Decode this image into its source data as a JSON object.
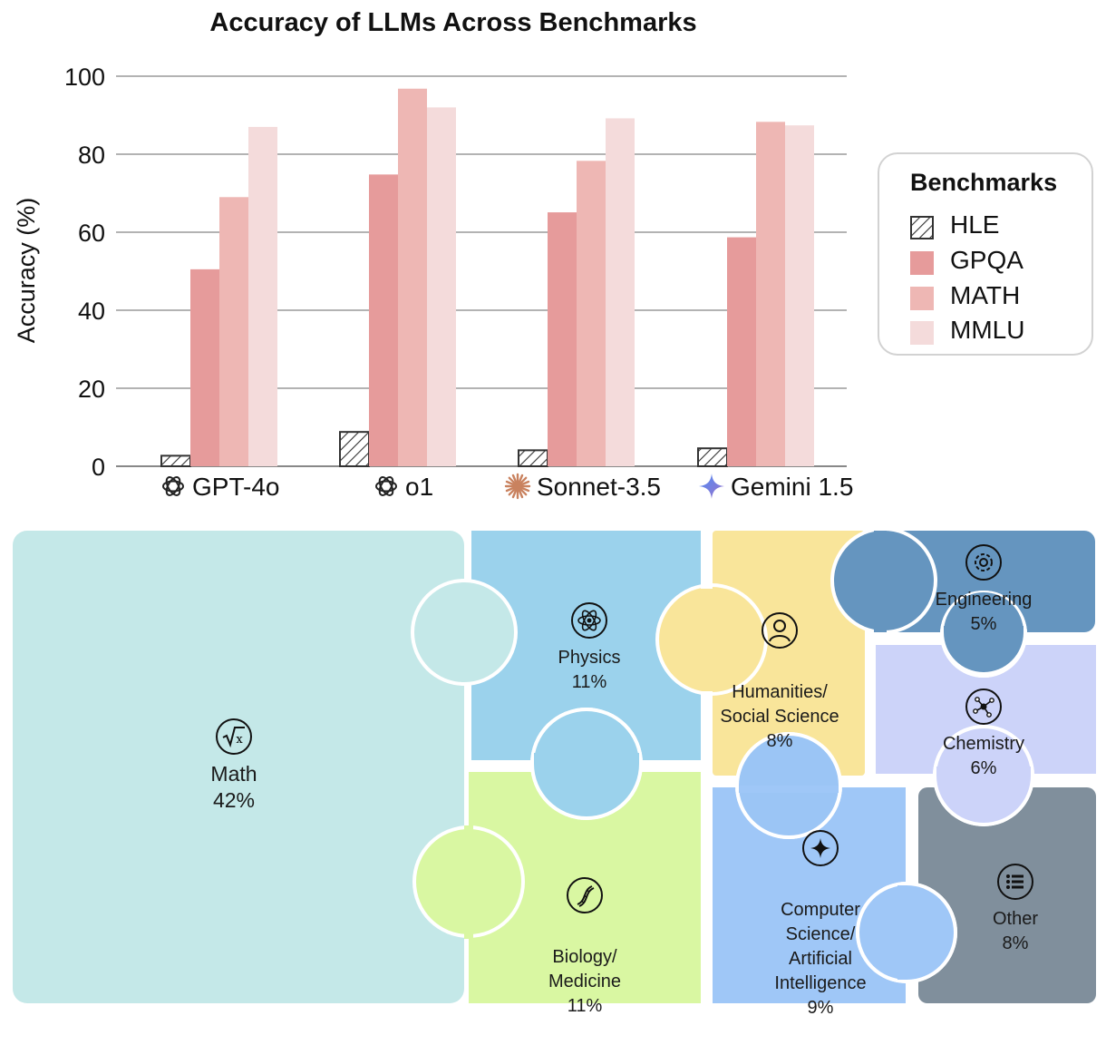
{
  "chart_data": {
    "type": "bar",
    "title": "Accuracy of LLMs Across Benchmarks",
    "xlabel": "",
    "ylabel": "Accuracy (%)",
    "ylim": [
      0,
      100
    ],
    "yticks": [
      0,
      20,
      40,
      60,
      80,
      100
    ],
    "grid": true,
    "legend_title": "Benchmarks",
    "legend_position": "right",
    "categories": [
      "GPT-4o",
      "o1",
      "Sonnet-3.5",
      "Gemini 1.5"
    ],
    "series": [
      {
        "name": "HLE",
        "values": [
          2.7,
          8.8,
          4.1,
          4.6
        ],
        "color": "#ffffff",
        "pattern": "hatch"
      },
      {
        "name": "GPQA",
        "values": [
          50.5,
          74.8,
          65.1,
          58.7
        ],
        "color": "#e69b9b"
      },
      {
        "name": "MATH",
        "values": [
          69.0,
          96.8,
          78.3,
          88.3
        ],
        "color": "#eeb7b4"
      },
      {
        "name": "MMLU",
        "values": [
          87.0,
          92.0,
          89.2,
          87.4
        ],
        "color": "#f4dbdb"
      }
    ]
  },
  "category_icons": [
    "openai-logo-icon",
    "openai-logo-icon",
    "anthropic-logo-icon",
    "gemini-logo-icon"
  ],
  "subjects": [
    {
      "name": "Math",
      "pct": "42%",
      "icon": "square-root-icon",
      "color": "#c4e8e8"
    },
    {
      "name": "Physics",
      "pct": "11%",
      "icon": "atom-icon",
      "color": "#9bd2ec"
    },
    {
      "name": "Humanities/\nSocial Science",
      "pct": "8%",
      "icon": "person-icon",
      "color": "#f9e59a"
    },
    {
      "name": "Engineering",
      "pct": "5%",
      "icon": "gear-icon",
      "color": "#6595bf"
    },
    {
      "name": "Chemistry",
      "pct": "6%",
      "icon": "molecule-icon",
      "color": "#ccd3f9"
    },
    {
      "name": "Biology/\nMedicine",
      "pct": "11%",
      "icon": "dna-icon",
      "color": "#d9f7a2"
    },
    {
      "name": "Computer\nScience/\nArtificial\nIntelligence",
      "pct": "9%",
      "icon": "sparkle-icon",
      "color": "#9fc7f7"
    },
    {
      "name": "Other",
      "pct": "8%",
      "icon": "list-icon",
      "color": "#808f9c"
    }
  ]
}
